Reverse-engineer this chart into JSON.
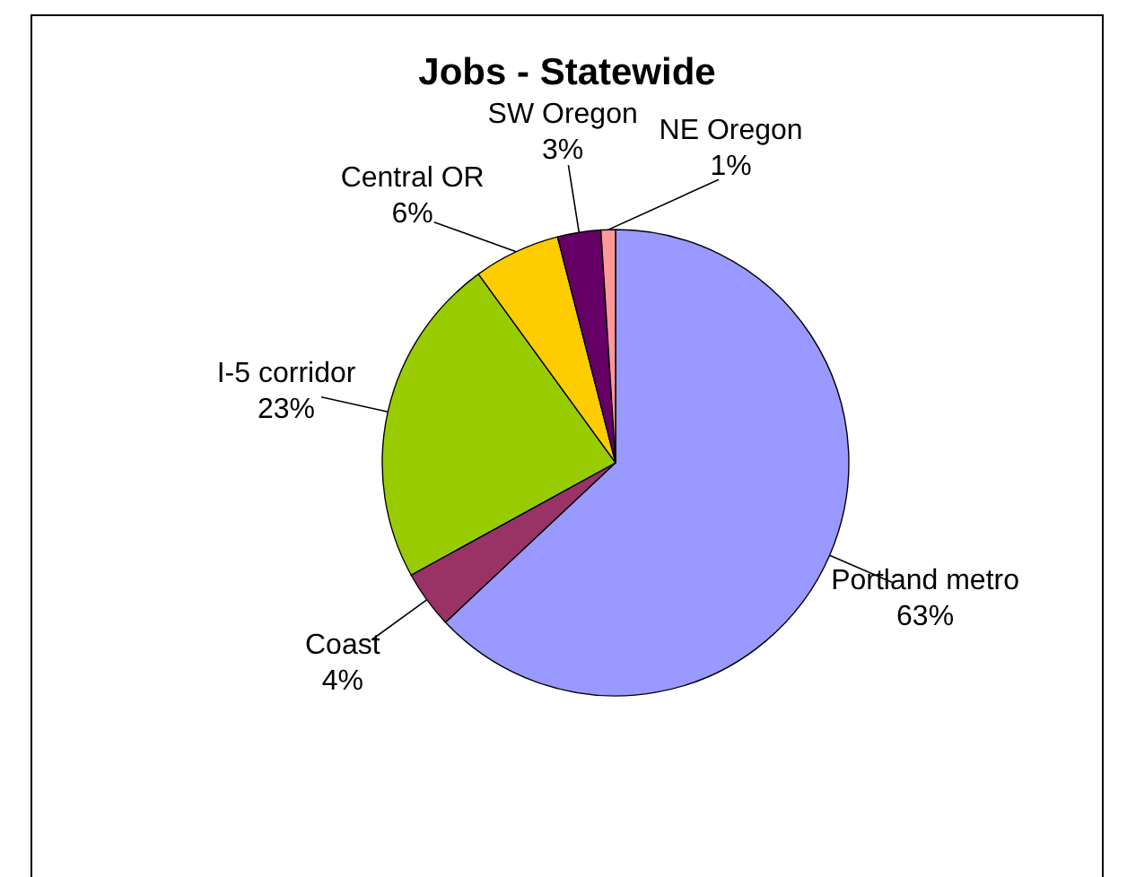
{
  "chart_data": {
    "type": "pie",
    "title": "Jobs - Statewide",
    "categories": [
      "Portland metro",
      "Coast",
      "I-5 corridor",
      "Central OR",
      "SW Oregon",
      "NE Oregon"
    ],
    "values": [
      63,
      4,
      23,
      6,
      3,
      1
    ],
    "value_labels": [
      "63%",
      "4%",
      "23%",
      "6%",
      "3%",
      "1%"
    ],
    "colors": [
      "#9999ff",
      "#993366",
      "#99cc00",
      "#ffcc00",
      "#660066",
      "#ff9999"
    ],
    "legend": false
  }
}
